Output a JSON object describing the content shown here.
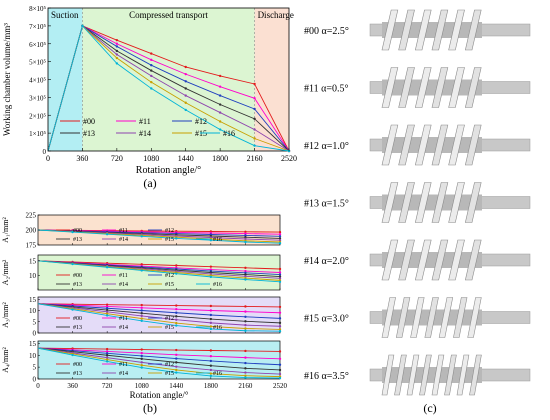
{
  "chart_data": [
    {
      "type": "line",
      "title": "",
      "xlabel": "Rotation angle/°",
      "ylabel": "Working chamber volume/mm³",
      "xlim": [
        0,
        2520
      ],
      "ylim": [
        0,
        800000
      ],
      "x_ticks": [
        0,
        360,
        720,
        1080,
        1440,
        1800,
        2160,
        2520
      ],
      "y_ticks": [
        {
          "v": 0,
          "label": "0"
        },
        {
          "v": 100000,
          "label": "1×10⁵"
        },
        {
          "v": 200000,
          "label": "2×10⁵"
        },
        {
          "v": 300000,
          "label": "3×10⁵"
        },
        {
          "v": 400000,
          "label": "4×10⁵"
        },
        {
          "v": 500000,
          "label": "5×10⁵"
        },
        {
          "v": 600000,
          "label": "6×10⁵"
        },
        {
          "v": 700000,
          "label": "7×10⁵"
        },
        {
          "v": 800000,
          "label": "8×10⁵"
        }
      ],
      "regions": [
        {
          "label": "Suction",
          "from": 0,
          "to": 360,
          "color": "#b3eef3"
        },
        {
          "label": "Compressed transport",
          "from": 360,
          "to": 2160,
          "color": "#dcf5d2"
        },
        {
          "label": "Discharge",
          "from": 2160,
          "to": 2520,
          "color": "#fbe0d2"
        }
      ],
      "x": [
        0,
        360,
        720,
        1080,
        1440,
        1800,
        2160,
        2520
      ],
      "series": [
        {
          "name": "#00",
          "color": "#e31a1c",
          "values": [
            0,
            700000,
            620000,
            545000,
            470000,
            420000,
            375000,
            0
          ]
        },
        {
          "name": "#11",
          "color": "#ff00cc",
          "values": [
            0,
            700000,
            600000,
            510000,
            430000,
            360000,
            295000,
            0
          ]
        },
        {
          "name": "#12",
          "color": "#1f3fbf",
          "values": [
            0,
            700000,
            585000,
            480000,
            390000,
            310000,
            235000,
            0
          ]
        },
        {
          "name": "#13",
          "color": "#333333",
          "values": [
            0,
            700000,
            560000,
            450000,
            350000,
            260000,
            180000,
            0
          ]
        },
        {
          "name": "#14",
          "color": "#8e44ad",
          "values": [
            0,
            700000,
            540000,
            420000,
            310000,
            215000,
            120000,
            0
          ]
        },
        {
          "name": "#15",
          "color": "#c8a000",
          "values": [
            0,
            700000,
            520000,
            385000,
            270000,
            165000,
            70000,
            0
          ]
        },
        {
          "name": "#16",
          "color": "#00b4d8",
          "values": [
            0,
            700000,
            490000,
            350000,
            230000,
            120000,
            30000,
            0
          ]
        }
      ],
      "legend": "bottom-left",
      "caption": "(a)"
    },
    {
      "type": "line",
      "ylabel": "A₁/mm²",
      "xlim": [
        0,
        2520
      ],
      "ylim": [
        175,
        225
      ],
      "y_ticks": [
        {
          "v": 175,
          "label": "175"
        },
        {
          "v": 200,
          "label": "200"
        },
        {
          "v": 225,
          "label": "225"
        }
      ],
      "background": "#fbe2cf",
      "x": [
        0,
        360,
        720,
        1080,
        1440,
        1800,
        2160,
        2520
      ],
      "series": [
        {
          "name": "#00",
          "color": "#e31a1c",
          "values": [
            200,
            199.5,
            199,
            198.5,
            198,
            197.5,
            197,
            196.5
          ]
        },
        {
          "name": "#11",
          "color": "#ff00cc",
          "values": [
            200,
            199,
            198,
            197,
            196,
            195,
            194,
            193
          ]
        },
        {
          "name": "#12",
          "color": "#1f3fbf",
          "values": [
            200,
            198.5,
            197,
            195.5,
            194,
            192.5,
            191,
            189.5
          ]
        },
        {
          "name": "#13",
          "color": "#333333",
          "values": [
            200,
            198,
            196,
            194,
            192,
            190,
            188,
            186
          ]
        },
        {
          "name": "#14",
          "color": "#8e44ad",
          "values": [
            200,
            197.5,
            195,
            192.5,
            190,
            187.5,
            185,
            183
          ]
        },
        {
          "name": "#15",
          "color": "#c8a000",
          "values": [
            200,
            197,
            194,
            191,
            188,
            185,
            182,
            180
          ]
        },
        {
          "name": "#16",
          "color": "#00b4d8",
          "values": [
            200,
            196.5,
            193,
            189.5,
            186,
            183,
            180,
            178
          ]
        }
      ]
    },
    {
      "type": "line",
      "ylabel": "A₂/mm²",
      "xlim": [
        0,
        2520
      ],
      "ylim": [
        5,
        17
      ],
      "y_ticks": [
        {
          "v": 10,
          "label": "10"
        },
        {
          "v": 15,
          "label": "15"
        }
      ],
      "background": "#dcf5d2",
      "x": [
        0,
        360,
        720,
        1080,
        1440,
        1800,
        2160,
        2520
      ],
      "series": [
        {
          "name": "#00",
          "color": "#e31a1c",
          "values": [
            15,
            14.6,
            14.2,
            13.8,
            13.4,
            13.0,
            12.6,
            12.2
          ]
        },
        {
          "name": "#11",
          "color": "#ff00cc",
          "values": [
            15,
            14.4,
            13.8,
            13.2,
            12.6,
            12.0,
            11.5,
            11.0
          ]
        },
        {
          "name": "#12",
          "color": "#1f3fbf",
          "values": [
            15,
            14.3,
            13.6,
            12.9,
            12.2,
            11.5,
            10.9,
            10.3
          ]
        },
        {
          "name": "#13",
          "color": "#333333",
          "values": [
            15,
            14.2,
            13.4,
            12.6,
            11.8,
            11.0,
            10.3,
            9.6
          ]
        },
        {
          "name": "#14",
          "color": "#8e44ad",
          "values": [
            15,
            14.1,
            13.2,
            12.3,
            11.4,
            10.5,
            9.7,
            9.0
          ]
        },
        {
          "name": "#15",
          "color": "#c8a000",
          "values": [
            15,
            14.0,
            13.0,
            12.0,
            11.0,
            10.0,
            9.1,
            8.3
          ]
        },
        {
          "name": "#16",
          "color": "#00b4d8",
          "values": [
            15,
            13.9,
            12.8,
            11.7,
            10.6,
            9.5,
            8.6,
            7.8
          ]
        }
      ]
    },
    {
      "type": "line",
      "ylabel": "A₃/mm²",
      "xlim": [
        0,
        2520
      ],
      "ylim": [
        0,
        16
      ],
      "y_ticks": [
        {
          "v": 0,
          "label": "0"
        },
        {
          "v": 5,
          "label": "5"
        },
        {
          "v": 10,
          "label": "10"
        },
        {
          "v": 15,
          "label": "15"
        }
      ],
      "background": "#e4dcf8",
      "x": [
        0,
        360,
        720,
        1080,
        1440,
        1800,
        2160,
        2520
      ],
      "series": [
        {
          "name": "#00",
          "color": "#e31a1c",
          "values": [
            13,
            12.8,
            12.6,
            12.4,
            12.2,
            12.0,
            11.8,
            11.6
          ]
        },
        {
          "name": "#11",
          "color": "#ff00cc",
          "values": [
            13,
            12.4,
            11.8,
            11.2,
            10.6,
            10.0,
            9.5,
            9.0
          ]
        },
        {
          "name": "#12",
          "color": "#1f3fbf",
          "values": [
            13,
            12.0,
            11.0,
            10.0,
            9.0,
            8.0,
            7.2,
            6.5
          ]
        },
        {
          "name": "#13",
          "color": "#333333",
          "values": [
            13,
            11.6,
            10.2,
            8.8,
            7.4,
            6.2,
            5.2,
            4.5
          ]
        },
        {
          "name": "#14",
          "color": "#8e44ad",
          "values": [
            13,
            11.2,
            9.4,
            7.6,
            5.9,
            4.5,
            3.5,
            3.0
          ]
        },
        {
          "name": "#15",
          "color": "#c8a000",
          "values": [
            13,
            10.8,
            8.6,
            6.4,
            4.4,
            2.9,
            2.0,
            1.6
          ]
        },
        {
          "name": "#16",
          "color": "#00b4d8",
          "values": [
            13,
            10.4,
            7.8,
            5.4,
            3.3,
            1.8,
            1.0,
            0.8
          ]
        }
      ]
    },
    {
      "type": "line",
      "ylabel": "A₄/mm²",
      "xlabel": "Rotation angle/°",
      "xlim": [
        0,
        2520
      ],
      "ylim": [
        0,
        16
      ],
      "x_ticks": [
        0,
        360,
        720,
        1080,
        1440,
        1800,
        2160,
        2520
      ],
      "y_ticks": [
        {
          "v": 0,
          "label": "0"
        },
        {
          "v": 5,
          "label": "5"
        },
        {
          "v": 10,
          "label": "10"
        },
        {
          "v": 15,
          "label": "15"
        }
      ],
      "background": "#b9eef2",
      "x": [
        0,
        360,
        720,
        1080,
        1440,
        1800,
        2160,
        2520
      ],
      "series": [
        {
          "name": "#00",
          "color": "#e31a1c",
          "values": [
            13,
            12.8,
            12.6,
            12.4,
            12.2,
            12.0,
            11.8,
            11.6
          ]
        },
        {
          "name": "#11",
          "color": "#ff00cc",
          "values": [
            13,
            12.3,
            11.6,
            10.9,
            10.2,
            9.6,
            9.0,
            8.5
          ]
        },
        {
          "name": "#12",
          "color": "#1f3fbf",
          "values": [
            13,
            11.9,
            10.8,
            9.7,
            8.6,
            7.6,
            6.7,
            6.0
          ]
        },
        {
          "name": "#13",
          "color": "#333333",
          "values": [
            13,
            11.5,
            10.0,
            8.5,
            7.0,
            5.6,
            4.5,
            3.8
          ]
        },
        {
          "name": "#14",
          "color": "#8e44ad",
          "values": [
            13,
            11.0,
            9.0,
            7.0,
            5.2,
            3.8,
            2.7,
            2.1
          ]
        },
        {
          "name": "#15",
          "color": "#c8a000",
          "values": [
            13,
            10.6,
            8.2,
            5.8,
            3.8,
            2.3,
            1.4,
            1.0
          ]
        },
        {
          "name": "#16",
          "color": "#00b4d8",
          "values": [
            13,
            10.1,
            7.4,
            4.8,
            2.7,
            1.3,
            0.6,
            0.4
          ]
        }
      ],
      "caption": "(b)"
    }
  ],
  "rotor_panel": {
    "caption": "(c)",
    "rotors": [
      {
        "label": "#00 α=2.5°",
        "turns": 6
      },
      {
        "label": "#11 α=0.5°",
        "turns": 6
      },
      {
        "label": "#12 α=1.0°",
        "turns": 6
      },
      {
        "label": "#13 α=1.5°",
        "turns": 6
      },
      {
        "label": "#14 α=2.0°",
        "turns": 6
      },
      {
        "label": "#15 α=3.0°",
        "turns": 7
      },
      {
        "label": "#16 α=3.5°",
        "turns": 8
      }
    ]
  },
  "colors": {
    "axis": "#000000",
    "rotor_light": "#ececec",
    "rotor_dark": "#8c8c8c",
    "shaft": "#c8c8c8"
  }
}
